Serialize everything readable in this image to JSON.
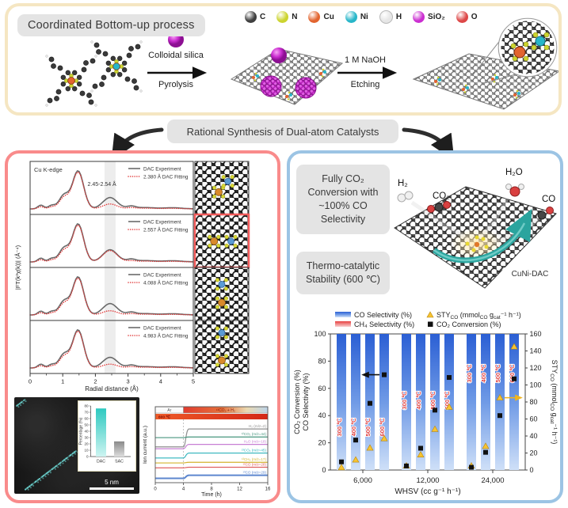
{
  "colors": {
    "top_border": "#f5e6c2",
    "left_border": "#f98b8b",
    "right_border": "#9cc4e4",
    "gray_box": "#e4e4e4",
    "bar_blue": "#2b5fd4",
    "sty_yellow": "#f7c331",
    "conversion_black": "#111111",
    "fitting_red": "#e03535",
    "experiment_gray": "#6a6a6a",
    "silica_magenta": "#cb2ed1",
    "teal_arrow": "#2aa49e"
  },
  "header": {
    "title": "Coordinated Bottom-up process",
    "atoms": [
      {
        "label": "C",
        "color": "#3f3f3f"
      },
      {
        "label": "N",
        "color": "#ccd42f"
      },
      {
        "label": "Cu",
        "color": "#e2642f"
      },
      {
        "label": "Ni",
        "color": "#27b6c9"
      },
      {
        "label": "H",
        "color": "#e6e6e6"
      },
      {
        "label": "SiO₂",
        "color": "#cb2ed1"
      },
      {
        "label": "O",
        "color": "#dd4747"
      }
    ],
    "steps": {
      "step1_top": "Colloidal silica",
      "step1_bottom": "Pyrolysis",
      "step2_top": "1 M NaOH",
      "step2_bottom": "Etching"
    }
  },
  "banner": {
    "label": "Rational Synthesis of Dual-atom Catalysts"
  },
  "left_panel": {
    "stem": {
      "scalebar": "5 nm"
    }
  },
  "right_panel": {
    "info_box1": "Fully CO₂ Conversion with ~100% CO Selectivity",
    "info_box2": "Thermo-catalytic Stability (600 ℃)",
    "molecules": {
      "h2": "H₂",
      "co2": "CO₂",
      "h2o": "H₂O",
      "co": "CO"
    },
    "sheet_label": "CuNi-DAC"
  },
  "chart_data": [
    {
      "id": "catalysis_performance",
      "type": "bar",
      "categories": [
        "6,000",
        "12,000",
        "24,000"
      ],
      "bar_series_temps": [
        "300 ℃",
        "400 ℃",
        "500 ℃",
        "600 ℃"
      ],
      "co_selectivity_pct": [
        [
          100,
          100,
          100,
          100
        ],
        [
          100,
          100,
          100,
          100
        ],
        [
          100,
          100,
          100,
          100
        ]
      ],
      "ch4_selectivity_pct": [
        [
          0,
          0,
          0,
          0
        ],
        [
          0,
          0,
          0,
          0
        ],
        [
          0,
          0,
          0,
          0
        ]
      ],
      "co2_conversion_pct": [
        [
          6,
          22,
          49,
          70
        ],
        [
          3,
          16,
          44,
          68
        ],
        [
          2,
          13,
          40,
          67
        ]
      ],
      "sty_co": [
        [
          3,
          12,
          26,
          37
        ],
        [
          5,
          18,
          48,
          74
        ],
        [
          5,
          28,
          85,
          145
        ]
      ],
      "xlabel": "WHSV (cc g⁻¹ h⁻¹)",
      "ylabel_left_line1": "CO₂ Conversion (%)",
      "ylabel_left_line2": "CO Selectivity (%)",
      "ylabel_right": "STY~CO~ (mmol~CO~ g~cat~⁻¹ h⁻¹)",
      "ylim_left": [
        0,
        100
      ],
      "ylim_right": [
        0,
        160
      ],
      "yticks_left": [
        0,
        20,
        40,
        60,
        80,
        100
      ],
      "yticks_right": [
        0,
        20,
        40,
        60,
        80,
        100,
        120,
        140,
        160
      ],
      "legend": [
        {
          "label": "CO Selectivity (%)",
          "swatch": "blue-bar"
        },
        {
          "label": "CH₄ Selectivity (%)",
          "swatch": "red-bar"
        },
        {
          "label": "STY~CO~ (mmol~CO~ g~cat~⁻¹ h⁻¹)",
          "swatch": "yellow-triangle"
        },
        {
          "label": "CO₂ Conversion (%)",
          "swatch": "black-square"
        }
      ],
      "legend_position": "top"
    },
    {
      "id": "dac_sac_percentage",
      "type": "bar",
      "ylabel": "Percentage (%)",
      "categories": [
        "DAC",
        "SAC"
      ],
      "values": [
        76,
        24
      ],
      "ylim": [
        0,
        80
      ],
      "yticks": [
        0,
        10,
        20,
        30,
        40,
        50,
        60,
        70,
        80
      ],
      "colors": [
        "#2ec9c0",
        "#8a8a8a"
      ]
    },
    {
      "id": "ms_ion_current",
      "type": "line",
      "xlabel": "Time (h)",
      "ylabel": "Ion current (a.u.)",
      "xticks": [
        0,
        4,
        8,
        12,
        16
      ],
      "switch_time_h": 4,
      "phase_bands": [
        {
          "label": "Ar",
          "x": [
            0,
            4
          ]
        },
        {
          "label": "¹³CO₂ + H₂",
          "x": [
            4,
            16
          ]
        },
        {
          "label": "600 ℃",
          "x": [
            0,
            16
          ]
        }
      ],
      "series": [
        {
          "label": "H₂ (m/z=2)",
          "color": "#8f8f8f",
          "pre": 0.42,
          "post": 0.13
        },
        {
          "label": "¹²CO₂ (m/z=44)",
          "color": "#48967f",
          "pre": 0.27,
          "post": 0.26
        },
        {
          "label": "H₂O (m/z=18)",
          "color": "#c77fd4",
          "pre": 0.45,
          "post": 0.38
        },
        {
          "label": "¹³CO₂ (m/z=45)",
          "color": "#2fb3bc",
          "pre": 0.6,
          "post": 0.52
        },
        {
          "label": "¹³CH₄ (m/z=17)",
          "color": "#d4b42f",
          "pre": 0.68,
          "post": 0.67
        },
        {
          "label": "¹²CO (m/z=28)",
          "color": "#e06161",
          "pre": 0.76,
          "post": 0.75
        },
        {
          "label": "¹³CO (m/z=29)",
          "color": "#5d87cf",
          "pre": 0.93,
          "post": 0.88
        }
      ]
    },
    {
      "id": "exafs_fitting",
      "type": "line",
      "title": "Cu K-edge",
      "annotation": "2.45-2.54 Å",
      "experiment_label": "DAC Experiment",
      "xlabel": "Radial distance (Å)",
      "ylabel": "|FT(k³χ(k))| (Å⁻⁴)",
      "xticks": [
        0,
        1,
        2,
        3,
        4,
        5
      ],
      "xlim": [
        0,
        5
      ],
      "highlight_band_A": [
        2.28,
        2.62
      ],
      "peak_positions_A": [
        0.33,
        0.66,
        1.04,
        1.47,
        2.45,
        3.1
      ],
      "panels": [
        {
          "fitting_label": "2.380 Å DAC Fitting",
          "highlighted_inset": false
        },
        {
          "fitting_label": "2.557 Å DAC Fitting",
          "highlighted_inset": true
        },
        {
          "fitting_label": "4.088 Å DAC Fitting",
          "highlighted_inset": false
        },
        {
          "fitting_label": "4.983 Å DAC Fitting",
          "highlighted_inset": false
        }
      ]
    }
  ]
}
